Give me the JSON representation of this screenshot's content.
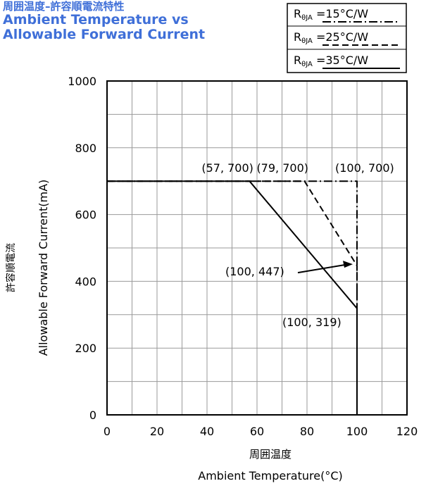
{
  "title": {
    "jp": "周囲温度–許容順電流特性",
    "en_line1": "Ambient Temperature vs",
    "en_line2": "Allowable Forward Current"
  },
  "colors": {
    "title": "#3f6fd8",
    "line": "#000000",
    "grid": "#9a9a9a"
  },
  "chart_data": {
    "type": "line",
    "xlabel_jp": "周囲温度",
    "xlabel": "Ambient Temperature(°C)",
    "ylabel_jp": "許容順電流",
    "ylabel": "Allowable Forward Current(mA)",
    "xlim": [
      0,
      120
    ],
    "ylim": [
      0,
      1000
    ],
    "x_ticks": [
      0,
      20,
      40,
      60,
      80,
      100,
      120
    ],
    "y_ticks": [
      0,
      200,
      400,
      600,
      800,
      1000
    ],
    "grid": true,
    "legend_position": "top-right",
    "series": [
      {
        "name_prefix": "R",
        "name_sub": "θJA",
        "name_suffix": " =15°C/W",
        "style": "dash-dot",
        "points": [
          [
            0,
            700
          ],
          [
            100,
            700
          ],
          [
            100,
            0
          ]
        ]
      },
      {
        "name_prefix": "R",
        "name_sub": "θJA",
        "name_suffix": " =25°C/W",
        "style": "dashed",
        "points": [
          [
            0,
            700
          ],
          [
            79,
            700
          ],
          [
            100,
            447
          ],
          [
            100,
            0
          ]
        ]
      },
      {
        "name_prefix": "R",
        "name_sub": "θJA",
        "name_suffix": " =35°C/W",
        "style": "solid",
        "points": [
          [
            0,
            700
          ],
          [
            57,
            700
          ],
          [
            100,
            319
          ],
          [
            100,
            0
          ]
        ]
      }
    ],
    "annotations": [
      {
        "text": "(57, 700)",
        "x": 57,
        "y": 700
      },
      {
        "text": "(79, 700)",
        "x": 79,
        "y": 700
      },
      {
        "text": "(100, 700)",
        "x": 100,
        "y": 700
      },
      {
        "text": "(100, 447)",
        "x": 100,
        "y": 447,
        "arrow": true
      },
      {
        "text": "(100, 319)",
        "x": 100,
        "y": 319
      }
    ]
  }
}
